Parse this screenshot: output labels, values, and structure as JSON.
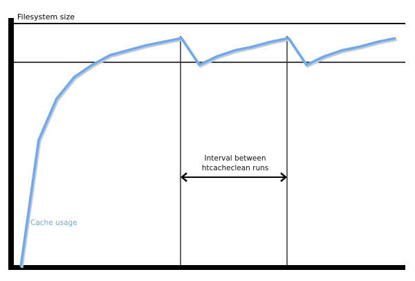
{
  "labels": {
    "y_axis": "Filesystem size",
    "interval_line1": "Interval between",
    "interval_line2": "htcacheclean runs",
    "series": "Cache usage"
  },
  "colors": {
    "cache_line": "#6aaaf4",
    "axis": "#000000"
  },
  "cache_usage_curve": [
    [
      0,
      0
    ],
    [
      1,
      0.52
    ],
    [
      2,
      0.69
    ],
    [
      3,
      0.78
    ],
    [
      4,
      0.83
    ],
    [
      5,
      0.87
    ],
    [
      6,
      0.89
    ],
    [
      7,
      0.91
    ],
    [
      8,
      0.925
    ],
    [
      9,
      0.94
    ],
    [
      10,
      0.83
    ],
    [
      11,
      0.865
    ],
    [
      12,
      0.89
    ],
    [
      13,
      0.905
    ],
    [
      14,
      0.925
    ],
    [
      15,
      0.94
    ],
    [
      16,
      0.83
    ],
    [
      17,
      0.865
    ],
    [
      18,
      0.89
    ],
    [
      19,
      0.905
    ],
    [
      20,
      0.925
    ],
    [
      21,
      0.94
    ]
  ]
}
